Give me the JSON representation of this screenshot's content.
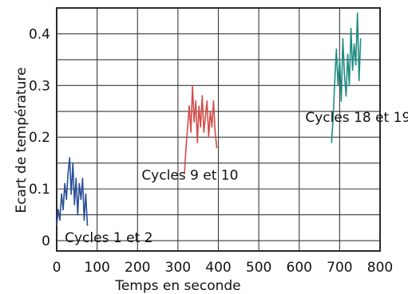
{
  "chart_data": {
    "type": "line",
    "title": "",
    "xlabel": "Temps en seconde",
    "ylabel": "Ecart de température",
    "xlim": [
      0,
      800
    ],
    "ylim": [
      -0.02,
      0.45
    ],
    "x_ticks": [
      "0",
      "100",
      "200",
      "300",
      "400",
      "500",
      "600",
      "700",
      "800"
    ],
    "y_ticks": [
      "0",
      "0.1",
      "0.2",
      "0.3",
      "0.4"
    ],
    "grid": true,
    "legend": "none",
    "series": [
      {
        "color": "#2a4f96",
        "x": [
          0,
          4,
          8,
          12,
          16,
          20,
          24,
          28,
          32,
          36,
          40,
          44,
          48,
          52,
          56,
          60,
          64,
          68,
          72,
          76
        ],
        "y": [
          0.03,
          0.06,
          0.04,
          0.09,
          0.06,
          0.11,
          0.08,
          0.13,
          0.16,
          0.09,
          0.15,
          0.07,
          0.12,
          0.05,
          0.11,
          0.08,
          0.12,
          0.04,
          0.09,
          0.03
        ]
      },
      {
        "color": "#d54c4c",
        "x": [
          316,
          320,
          324,
          328,
          332,
          336,
          340,
          344,
          348,
          352,
          356,
          360,
          364,
          368,
          372,
          376,
          380,
          384,
          388,
          392,
          396
        ],
        "y": [
          0.13,
          0.18,
          0.22,
          0.26,
          0.21,
          0.3,
          0.23,
          0.27,
          0.19,
          0.26,
          0.22,
          0.28,
          0.21,
          0.24,
          0.27,
          0.2,
          0.25,
          0.22,
          0.27,
          0.21,
          0.18
        ]
      },
      {
        "color": "#1f8c83",
        "x": [
          680,
          684,
          688,
          692,
          696,
          700,
          704,
          708,
          712,
          716,
          720,
          724,
          728,
          732,
          736,
          740,
          744,
          748,
          752
        ],
        "y": [
          0.19,
          0.24,
          0.31,
          0.37,
          0.3,
          0.35,
          0.27,
          0.39,
          0.32,
          0.28,
          0.36,
          0.3,
          0.41,
          0.33,
          0.38,
          0.34,
          0.44,
          0.31,
          0.39
        ]
      }
    ],
    "annotations": [
      {
        "text": "Cycles 1 et 2",
        "x": 20,
        "y": -0.003
      },
      {
        "text": "Cycles 9 et 10",
        "x": 210,
        "y": 0.118
      },
      {
        "text": "Cycles 18 et 19",
        "x": 615,
        "y": 0.23
      }
    ]
  }
}
